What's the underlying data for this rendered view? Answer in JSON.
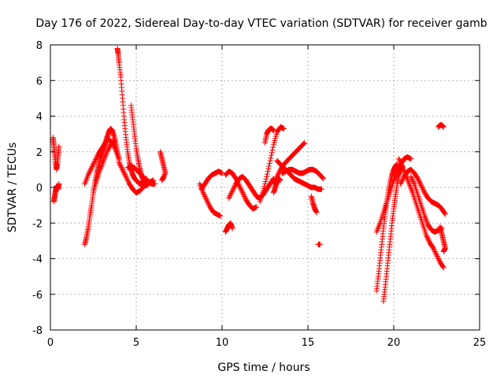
{
  "chart_data": {
    "type": "scatter",
    "title": "Day 176 of 2022, Sidereal Day-to-day VTEC variation (SDTVAR) for receiver gamb",
    "xlabel": "GPS time / hours",
    "ylabel": "SDTVAR / TECUs",
    "xlim": [
      0,
      25
    ],
    "ylim": [
      -8,
      8
    ],
    "xticks": [
      "0",
      "5",
      "10",
      "15",
      "20",
      "25"
    ],
    "yticks": [
      "-8",
      "-6",
      "-4",
      "-2",
      "0",
      "2",
      "4",
      "6",
      "8"
    ],
    "grid": true,
    "marker": "plus",
    "color": "#ff0000",
    "series": [
      {
        "x": [
          0.15,
          0.2,
          0.25,
          0.3,
          0.35,
          0.4,
          0.45,
          0.5
        ],
        "y": [
          2.8,
          2.4,
          1.9,
          1.4,
          1.0,
          1.3,
          1.8,
          2.3
        ]
      },
      {
        "x": [
          0.2,
          0.25,
          0.3,
          0.35,
          0.4,
          0.45,
          0.5
        ],
        "y": [
          -0.8,
          -0.5,
          -0.2,
          0.0,
          0.1,
          -0.1,
          0.2
        ]
      },
      {
        "x": [
          2.0,
          2.1,
          2.2,
          2.3,
          2.4,
          2.5,
          2.6,
          2.7,
          2.8,
          2.9,
          3.0,
          3.1,
          3.2,
          3.3,
          3.4,
          3.5,
          3.6,
          3.7,
          3.8,
          3.9,
          4.0
        ],
        "y": [
          -3.2,
          -2.8,
          -2.3,
          -1.6,
          -1.0,
          -0.3,
          0.3,
          0.8,
          1.2,
          1.6,
          1.9,
          2.2,
          2.5,
          2.8,
          3.1,
          3.3,
          3.2,
          2.9,
          2.5,
          2.0,
          1.5
        ]
      },
      {
        "x": [
          2.0,
          2.2,
          2.4,
          2.6,
          2.8,
          3.0,
          3.2,
          3.4,
          3.6,
          3.8,
          4.0
        ],
        "y": [
          0.2,
          0.7,
          1.1,
          1.5,
          1.9,
          2.2,
          2.5,
          2.7,
          2.5,
          2.1,
          1.6
        ]
      },
      {
        "x": [
          2.5,
          2.7,
          2.9,
          3.1,
          3.3,
          3.5,
          3.7
        ],
        "y": [
          -0.2,
          0.4,
          1.0,
          1.5,
          2.0,
          2.4,
          2.6
        ]
      },
      {
        "x": [
          3.9,
          3.95,
          4.0,
          4.1,
          4.2,
          4.3,
          4.4,
          4.5,
          4.6,
          4.7,
          4.8,
          4.9,
          5.0,
          5.1,
          5.2,
          5.3,
          5.4,
          5.5,
          5.6
        ],
        "y": [
          7.8,
          7.5,
          7.0,
          6.2,
          5.0,
          3.8,
          2.8,
          2.0,
          1.4,
          1.0,
          0.7,
          0.5,
          0.4,
          0.3,
          0.2,
          0.2,
          0.3,
          0.4,
          0.5
        ]
      },
      {
        "x": [
          4.7,
          4.8,
          4.9,
          5.0,
          5.1,
          5.2,
          5.3,
          5.4,
          5.5,
          5.6,
          5.7,
          5.8
        ],
        "y": [
          4.6,
          3.8,
          3.0,
          2.2,
          1.6,
          1.1,
          0.7,
          0.4,
          0.2,
          0.1,
          0.2,
          0.3
        ]
      },
      {
        "x": [
          4.0,
          4.2,
          4.4,
          4.6,
          4.8,
          5.0,
          5.2,
          5.4,
          5.6,
          5.8,
          6.0
        ],
        "y": [
          1.4,
          1.0,
          0.6,
          0.2,
          -0.1,
          -0.3,
          -0.2,
          0.0,
          0.2,
          0.3,
          0.4
        ]
      },
      {
        "x": [
          4.5,
          4.7,
          4.9,
          5.1,
          5.3,
          5.5,
          5.7,
          5.9,
          6.1
        ],
        "y": [
          1.1,
          1.2,
          1.1,
          0.9,
          0.7,
          0.5,
          0.3,
          0.2,
          0.2
        ]
      },
      {
        "x": [
          6.4,
          6.5,
          6.6,
          6.7,
          6.5,
          6.6
        ],
        "y": [
          2.0,
          1.6,
          1.2,
          0.8,
          0.4,
          0.6
        ]
      },
      {
        "x": [
          8.7,
          8.9,
          9.1,
          9.3,
          9.5,
          9.7,
          9.9
        ],
        "y": [
          0.2,
          -0.3,
          -0.7,
          -1.1,
          -1.4,
          -1.5,
          -1.6
        ]
      },
      {
        "x": [
          8.8,
          9.0,
          9.2,
          9.4,
          9.6,
          9.8,
          10.0
        ],
        "y": [
          -0.1,
          0.2,
          0.5,
          0.7,
          0.8,
          0.9,
          0.8
        ]
      },
      {
        "x": [
          10.2,
          10.3,
          10.4,
          10.5,
          10.6
        ],
        "y": [
          -2.5,
          -2.3,
          -2.1,
          -2.0,
          -2.3
        ]
      },
      {
        "x": [
          10.2,
          10.4,
          10.6,
          10.8,
          11.0,
          11.2,
          11.4,
          11.6,
          11.8,
          12.0
        ],
        "y": [
          0.7,
          0.9,
          0.8,
          0.5,
          0.1,
          -0.3,
          -0.7,
          -1.0,
          -1.2,
          -1.1
        ]
      },
      {
        "x": [
          10.4,
          10.6,
          10.8,
          11.0,
          11.2,
          11.4,
          11.6,
          11.8,
          12.0,
          12.2,
          12.4,
          12.6,
          12.8,
          13.0
        ],
        "y": [
          -0.6,
          -0.2,
          0.2,
          0.5,
          0.6,
          0.4,
          0.1,
          -0.2,
          -0.5,
          -0.6,
          -0.4,
          -0.1,
          0.2,
          0.5
        ]
      },
      {
        "x": [
          12.2,
          12.4,
          12.6,
          12.8,
          13.0,
          13.2,
          13.4,
          13.6
        ],
        "y": [
          -0.8,
          -0.2,
          0.6,
          1.5,
          2.4,
          3.1,
          3.4,
          3.3
        ]
      },
      {
        "x": [
          12.5,
          12.6,
          12.7,
          12.8,
          12.9,
          13.0
        ],
        "y": [
          2.5,
          3.0,
          3.2,
          3.3,
          3.3,
          3.2
        ]
      },
      {
        "x": [
          13.0,
          13.2,
          13.4,
          13.6,
          13.8,
          14.0,
          14.2,
          14.4,
          14.6,
          14.8
        ],
        "y": [
          0.2,
          0.6,
          1.0,
          1.3,
          1.5,
          1.7,
          1.9,
          2.1,
          2.3,
          2.5
        ]
      },
      {
        "x": [
          13.2,
          13.4,
          13.6,
          13.8,
          14.0,
          14.2,
          14.4,
          14.6,
          14.8,
          15.0,
          15.2,
          15.4,
          15.6,
          15.8
        ],
        "y": [
          1.5,
          1.3,
          1.1,
          0.9,
          0.7,
          0.5,
          0.4,
          0.3,
          0.2,
          0.1,
          0.0,
          0.0,
          -0.1,
          -0.1
        ]
      },
      {
        "x": [
          13.5,
          13.7,
          13.9,
          14.1,
          14.3,
          14.5,
          14.7,
          14.9,
          15.1,
          15.3,
          15.5,
          15.7,
          15.9
        ],
        "y": [
          0.8,
          0.9,
          1.0,
          1.0,
          0.9,
          0.8,
          0.8,
          0.9,
          1.0,
          1.0,
          0.9,
          0.7,
          0.5
        ]
      },
      {
        "x": [
          13.0,
          13.1,
          13.2,
          13.3,
          13.4
        ],
        "y": [
          -0.3,
          0.0,
          0.3,
          0.5,
          0.4
        ]
      },
      {
        "x": [
          15.2,
          15.3,
          15.4,
          15.5
        ],
        "y": [
          -0.5,
          -0.9,
          -1.2,
          -1.4
        ]
      },
      {
        "x": [
          15.6,
          15.7
        ],
        "y": [
          -3.2,
          -3.2
        ]
      },
      {
        "x": [
          19.0,
          19.1,
          19.2,
          19.3,
          19.4,
          19.5,
          19.6,
          19.7,
          19.8,
          19.9,
          20.0,
          20.1,
          20.2
        ],
        "y": [
          -5.8,
          -5.0,
          -4.1,
          -3.2,
          -2.3,
          -1.5,
          -0.8,
          -0.2,
          0.3,
          0.7,
          1.0,
          1.2,
          1.3
        ]
      },
      {
        "x": [
          19.4,
          19.5,
          19.6,
          19.7,
          19.8,
          19.9,
          20.0,
          20.1,
          20.2,
          20.3,
          20.4,
          20.5
        ],
        "y": [
          -6.4,
          -5.6,
          -4.7,
          -3.8,
          -2.9,
          -2.0,
          -1.2,
          -0.5,
          0.2,
          0.7,
          1.0,
          1.2
        ]
      },
      {
        "x": [
          19.0,
          19.2,
          19.4,
          19.6,
          19.8,
          20.0,
          20.2,
          20.4,
          20.6,
          20.8,
          21.0
        ],
        "y": [
          -2.5,
          -2.0,
          -1.4,
          -0.8,
          -0.2,
          0.4,
          0.9,
          1.3,
          1.6,
          1.7,
          1.6
        ]
      },
      {
        "x": [
          20.3,
          20.5,
          20.7,
          20.9,
          21.1,
          21.3,
          21.5,
          21.7,
          21.9,
          22.1,
          22.3,
          22.5,
          22.7,
          22.9
        ],
        "y": [
          1.6,
          1.2,
          0.7,
          0.2,
          -0.3,
          -0.9,
          -1.5,
          -2.1,
          -2.7,
          -3.1,
          -3.4,
          -3.8,
          -4.2,
          -4.5
        ]
      },
      {
        "x": [
          20.4,
          20.6,
          20.8,
          21.0,
          21.2,
          21.4,
          21.6,
          21.8,
          22.0,
          22.2,
          22.4,
          22.6,
          22.8,
          23.0
        ],
        "y": [
          0.2,
          0.6,
          0.9,
          1.0,
          0.8,
          0.5,
          0.1,
          -0.3,
          -0.6,
          -0.8,
          -0.9,
          -1.0,
          -1.2,
          -1.5
        ]
      },
      {
        "x": [
          21.0,
          21.2,
          21.4,
          21.6,
          21.8,
          22.0,
          22.2,
          22.4,
          22.6,
          22.8
        ],
        "y": [
          0.6,
          0.2,
          -0.4,
          -1.0,
          -1.6,
          -2.1,
          -2.4,
          -2.5,
          -2.4,
          -2.3
        ]
      },
      {
        "x": [
          22.7,
          22.8,
          22.9,
          23.0,
          22.9
        ],
        "y": [
          -2.2,
          -2.6,
          -3.0,
          -3.4,
          -3.6
        ]
      },
      {
        "x": [
          22.6,
          22.7,
          22.8,
          22.9
        ],
        "y": [
          3.4,
          3.5,
          3.5,
          3.4
        ]
      }
    ]
  }
}
